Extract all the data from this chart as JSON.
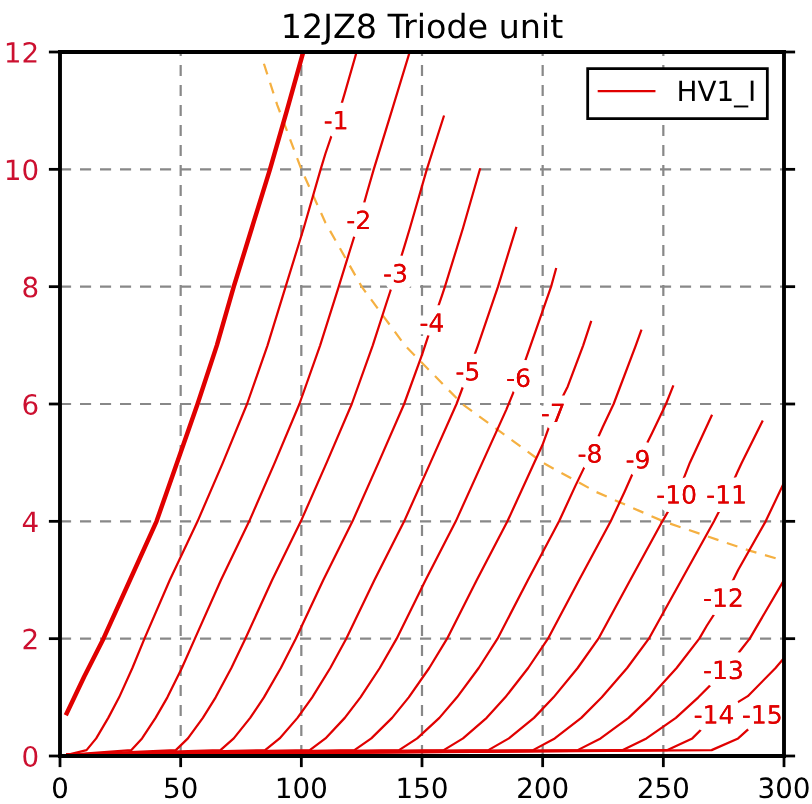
{
  "chart_data": {
    "type": "line",
    "title": "12JZ8 Triode unit",
    "xlim": [
      0,
      300
    ],
    "ylim": [
      0,
      12
    ],
    "xticks": [
      0,
      50,
      100,
      150,
      200,
      250,
      300
    ],
    "yticks": [
      0,
      2,
      4,
      6,
      8,
      10,
      12
    ],
    "grid": true,
    "legend": "top right",
    "series": [
      {
        "color": "#e00000",
        "x": [
          2.8,
          10,
          18,
          29,
          40,
          48.5,
          57,
          65,
          72,
          79.5,
          87,
          94,
          100.8
        ],
        "values": [
          0.73,
          1.35,
          2,
          3,
          4,
          5,
          6,
          7,
          8,
          9,
          10,
          11,
          12
        ]
      },
      {
        "name": "HV1_I",
        "color": "#e00000",
        "x": [
          3,
          11,
          15,
          20,
          24.5,
          30,
          35,
          45.5,
          57,
          67.5,
          77.5,
          86,
          93.5,
          101,
          108,
          110,
          114.4,
          118,
          122.9
        ],
        "values": [
          0.02,
          0.1,
          0.3,
          0.65,
          1,
          1.5,
          2,
          3,
          4,
          5,
          6,
          7,
          8,
          9,
          10,
          10.27,
          10.8,
          11.3,
          12
        ]
      },
      {
        "color": "#e00000",
        "x": [
          3,
          29.5,
          34,
          39.6,
          44.5,
          50.5,
          55.9,
          66.7,
          78.4,
          89,
          99.2,
          107.8,
          115.5,
          120,
          123.8,
          127.2,
          130,
          137.5,
          144.9
        ],
        "values": [
          0.02,
          0.1,
          0.3,
          0.65,
          1,
          1.5,
          2,
          3,
          4,
          5,
          6,
          7,
          8,
          8.6,
          9.1,
          9.6,
          10,
          11,
          12
        ]
      },
      {
        "color": "#e00000",
        "x": [
          3,
          48,
          53,
          59.2,
          64.5,
          71,
          76.8,
          87.9,
          99.8,
          110.5,
          120.9,
          129.6,
          135.1,
          139,
          142.8,
          145,
          152,
          159
        ],
        "values": [
          0.02,
          0.1,
          0.3,
          0.65,
          1,
          1.5,
          2,
          3,
          4,
          5,
          6,
          7,
          7.7,
          8.19,
          8.7,
          9,
          10,
          10.9
        ]
      },
      {
        "color": "#e00000",
        "x": [
          3,
          66.5,
          72,
          78.8,
          84.5,
          91.5,
          97.7,
          109.1,
          121.2,
          132,
          142.6,
          150.1,
          154.1,
          158.3,
          159.5,
          167,
          174
        ],
        "values": [
          0.02,
          0.1,
          0.3,
          0.65,
          1,
          1.5,
          2,
          3,
          4,
          5,
          6,
          6.85,
          7.35,
          7.85,
          8,
          9,
          10
        ]
      },
      {
        "color": "#e00000",
        "x": [
          3,
          85,
          91,
          98.4,
          104.5,
          112,
          118.6,
          130.3,
          142.6,
          153.5,
          164.3,
          169,
          173.2,
          181.5,
          189
        ],
        "values": [
          0.02,
          0.1,
          0.3,
          0.65,
          1,
          1.5,
          2,
          3,
          4,
          5,
          6,
          6.52,
          7,
          8,
          9
        ]
      },
      {
        "color": "#e00000",
        "x": [
          3,
          103.5,
          110,
          118,
          124.5,
          132.5,
          139.5,
          151.5,
          164,
          175,
          184.9,
          190,
          195,
          203.5,
          205.5
        ],
        "values": [
          0.02,
          0.1,
          0.3,
          0.65,
          1,
          1.5,
          2,
          3,
          4,
          5,
          5.9,
          6.41,
          7,
          8,
          8.3
        ]
      },
      {
        "color": "#e00000",
        "x": [
          3,
          122,
          129,
          137.6,
          144.5,
          153,
          160.4,
          172.7,
          185.4,
          196.5,
          199.9,
          204.4,
          210.4,
          216.8,
          220
        ],
        "values": [
          0.02,
          0.1,
          0.3,
          0.65,
          1,
          1.5,
          2,
          3,
          4,
          5,
          5.3,
          5.81,
          6.3,
          7,
          7.4
        ]
      },
      {
        "color": "#e00000",
        "x": [
          3,
          140.5,
          148,
          157.2,
          164.5,
          173.5,
          181.3,
          193.9,
          206.8,
          213.5,
          219.6,
          224.8,
          229.4,
          238.6,
          240.8
        ],
        "values": [
          0.02,
          0.1,
          0.3,
          0.65,
          1,
          1.5,
          2,
          3,
          4,
          4.6,
          5.12,
          5.6,
          6,
          7,
          7.25
        ]
      },
      {
        "color": "#e00000",
        "x": [
          3,
          159,
          167,
          176.8,
          184.5,
          194,
          202.2,
          215.1,
          228.2,
          233.9,
          239.5,
          245.3,
          251.1,
          254
        ],
        "values": [
          0.02,
          0.1,
          0.3,
          0.65,
          1,
          1.5,
          2,
          3,
          4,
          4.5,
          5.02,
          5.5,
          6,
          6.3
        ]
      },
      {
        "color": "#e00000",
        "x": [
          3,
          177.5,
          186,
          196.4,
          204.5,
          214.5,
          223.1,
          236.3,
          249.6,
          255.5,
          261,
          270
        ],
        "values": [
          0.02,
          0.1,
          0.3,
          0.65,
          1,
          1.5,
          2,
          3,
          4,
          4.42,
          5,
          5.8
        ]
      },
      {
        "color": "#e00000",
        "x": [
          3,
          196,
          205,
          216,
          224.5,
          235,
          244,
          257.5,
          271,
          276.2,
          280.8,
          282.5,
          291
        ],
        "values": [
          0.02,
          0.1,
          0.3,
          0.65,
          1,
          1.5,
          2,
          3,
          4,
          4.42,
          4.85,
          5,
          5.7
        ]
      },
      {
        "color": "#e00000",
        "x": [
          3,
          214.5,
          224,
          235.6,
          244.5,
          255.5,
          264.9,
          268,
          274.9,
          281,
          292.4,
          300
        ],
        "values": [
          0.02,
          0.1,
          0.3,
          0.65,
          1,
          1.5,
          2,
          2.22,
          2.66,
          3.17,
          4,
          4.66
        ]
      },
      {
        "color": "#e00000",
        "x": [
          3,
          233,
          243,
          255.2,
          264.5,
          274.9,
          282.9,
          285.8,
          300
        ],
        "values": [
          0.02,
          0.1,
          0.3,
          0.65,
          1,
          1.43,
          1.85,
          2,
          3
        ]
      },
      {
        "color": "#e00000",
        "x": [
          3,
          251.5,
          262,
          271,
          285,
          296.5,
          300
        ],
        "values": [
          0.02,
          0.1,
          0.3,
          0.67,
          1.02,
          1.5,
          1.67
        ]
      },
      {
        "color": "#e00000",
        "x": [
          3,
          270,
          281,
          291,
          300
        ],
        "values": [
          0.02,
          0.1,
          0.3,
          0.67,
          0.84
        ]
      },
      {
        "color": "#f5b041",
        "line_style": "dashed",
        "x": [
          84.5,
          90,
          100,
          110,
          125,
          142.9,
          166.7,
          200,
          222.2,
          250,
          285.7,
          300
        ],
        "values": [
          11.8,
          11.1,
          10,
          9.09,
          8,
          7,
          6,
          5,
          4.5,
          4,
          3.5,
          3.33
        ]
      }
    ],
    "annotations": [
      {
        "text": "-1",
        "x": 114.4,
        "y": 10.8
      },
      {
        "text": "-2",
        "x": 123.8,
        "y": 9.1
      },
      {
        "text": "-3",
        "x": 139,
        "y": 8.19
      },
      {
        "text": "-4",
        "x": 154.1,
        "y": 7.35
      },
      {
        "text": "-5",
        "x": 169,
        "y": 6.52
      },
      {
        "text": "-6",
        "x": 190,
        "y": 6.41
      },
      {
        "text": "-7",
        "x": 204.4,
        "y": 5.81
      },
      {
        "text": "-8",
        "x": 219.6,
        "y": 5.12
      },
      {
        "text": "-9",
        "x": 239.5,
        "y": 5.02
      },
      {
        "text": "-10",
        "x": 255.5,
        "y": 4.42
      },
      {
        "text": "-11",
        "x": 276.2,
        "y": 4.42
      },
      {
        "text": "-12",
        "x": 274.9,
        "y": 2.66
      },
      {
        "text": "-13",
        "x": 274.9,
        "y": 1.43
      },
      {
        "text": "-14",
        "x": 271,
        "y": 0.67
      },
      {
        "text": "-15",
        "x": 291,
        "y": 0.67
      }
    ]
  }
}
